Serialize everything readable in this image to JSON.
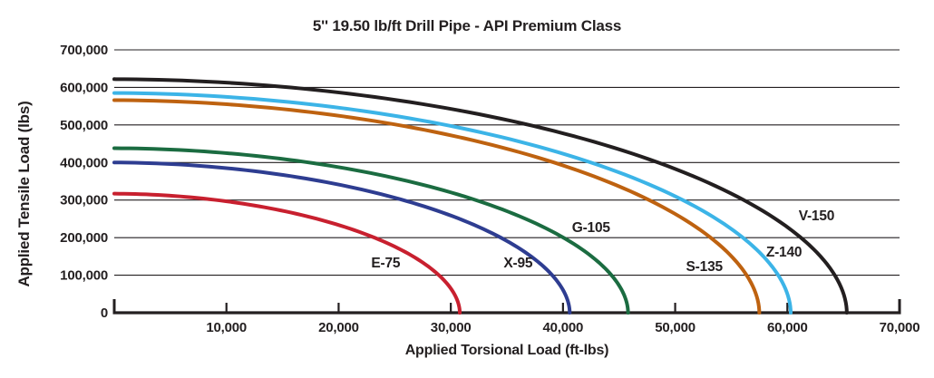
{
  "chart_data": {
    "type": "line",
    "title": "5'' 19.50 lb/ft Drill Pipe - API Premium Class",
    "xlabel": "Applied Torsional Load (ft-lbs)",
    "ylabel": "Applied Tensile Load (lbs)",
    "xlim": [
      0,
      70000
    ],
    "ylim": [
      0,
      700000
    ],
    "x_ticks": [
      10000,
      20000,
      30000,
      40000,
      50000,
      60000,
      70000
    ],
    "y_ticks": [
      0,
      100000,
      200000,
      300000,
      400000,
      500000,
      600000,
      700000
    ],
    "grid": "horizontal-only",
    "legend": "labels-on-curves",
    "axis_color": "#231F20",
    "series": [
      {
        "name": "E-75",
        "color": "#C8202F",
        "tensile_max_lbs": 317000,
        "torsional_max_ftlbs": 30800,
        "label_at": {
          "x": 24200,
          "y": 133000
        }
      },
      {
        "name": "X-95",
        "color": "#2E3D91",
        "tensile_max_lbs": 400000,
        "torsional_max_ftlbs": 40600,
        "label_at": {
          "x": 36000,
          "y": 133000
        }
      },
      {
        "name": "G-105",
        "color": "#1B6C41",
        "tensile_max_lbs": 438000,
        "torsional_max_ftlbs": 45800,
        "label_at": {
          "x": 42500,
          "y": 227000
        }
      },
      {
        "name": "S-135",
        "color": "#BE6210",
        "tensile_max_lbs": 566000,
        "torsional_max_ftlbs": 57500,
        "label_at": {
          "x": 52600,
          "y": 123000
        }
      },
      {
        "name": "Z-140",
        "color": "#3CB4E7",
        "tensile_max_lbs": 585000,
        "torsional_max_ftlbs": 60300,
        "label_at": {
          "x": 59700,
          "y": 162000
        }
      },
      {
        "name": "V-150",
        "color": "#231F20",
        "tensile_max_lbs": 622000,
        "torsional_max_ftlbs": 65300,
        "label_at": {
          "x": 62600,
          "y": 258000
        }
      }
    ]
  }
}
